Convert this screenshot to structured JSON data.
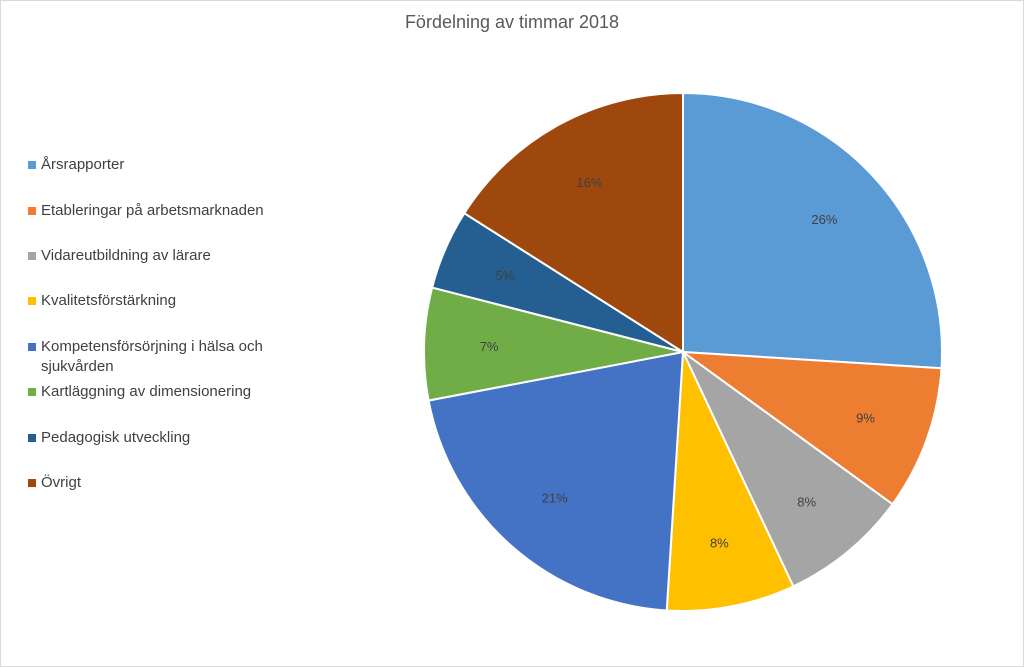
{
  "chart_data": {
    "type": "pie",
    "title": "Fördelning av timmar 2018",
    "legend_position": "left",
    "start_angle": "top, clockwise",
    "slices": [
      {
        "name": "Årsrapporter",
        "value": 26,
        "label": "26%",
        "color": "#5B9BD5"
      },
      {
        "name": "Etableringar på arbetsmarknaden",
        "value": 9,
        "label": "9%",
        "color": "#ED7D31"
      },
      {
        "name": "Vidareutbildning av lärare",
        "value": 8,
        "label": "8%",
        "color": "#A5A5A5"
      },
      {
        "name": "Kvalitetsförstärkning",
        "value": 8,
        "label": "8%",
        "color": "#FFC000"
      },
      {
        "name": "Kompetensförsörjning i hälsa och sjukvården",
        "value": 21,
        "label": "21%",
        "color": "#4472C4"
      },
      {
        "name": "Kartläggning av dimensionering",
        "value": 7,
        "label": "7%",
        "color": "#70AD47"
      },
      {
        "name": "Pedagogisk utveckling",
        "value": 5,
        "label": "5%",
        "color": "#255E91"
      },
      {
        "name": "Övrigt",
        "value": 16,
        "label": "16%",
        "color": "#9E480E"
      }
    ]
  }
}
